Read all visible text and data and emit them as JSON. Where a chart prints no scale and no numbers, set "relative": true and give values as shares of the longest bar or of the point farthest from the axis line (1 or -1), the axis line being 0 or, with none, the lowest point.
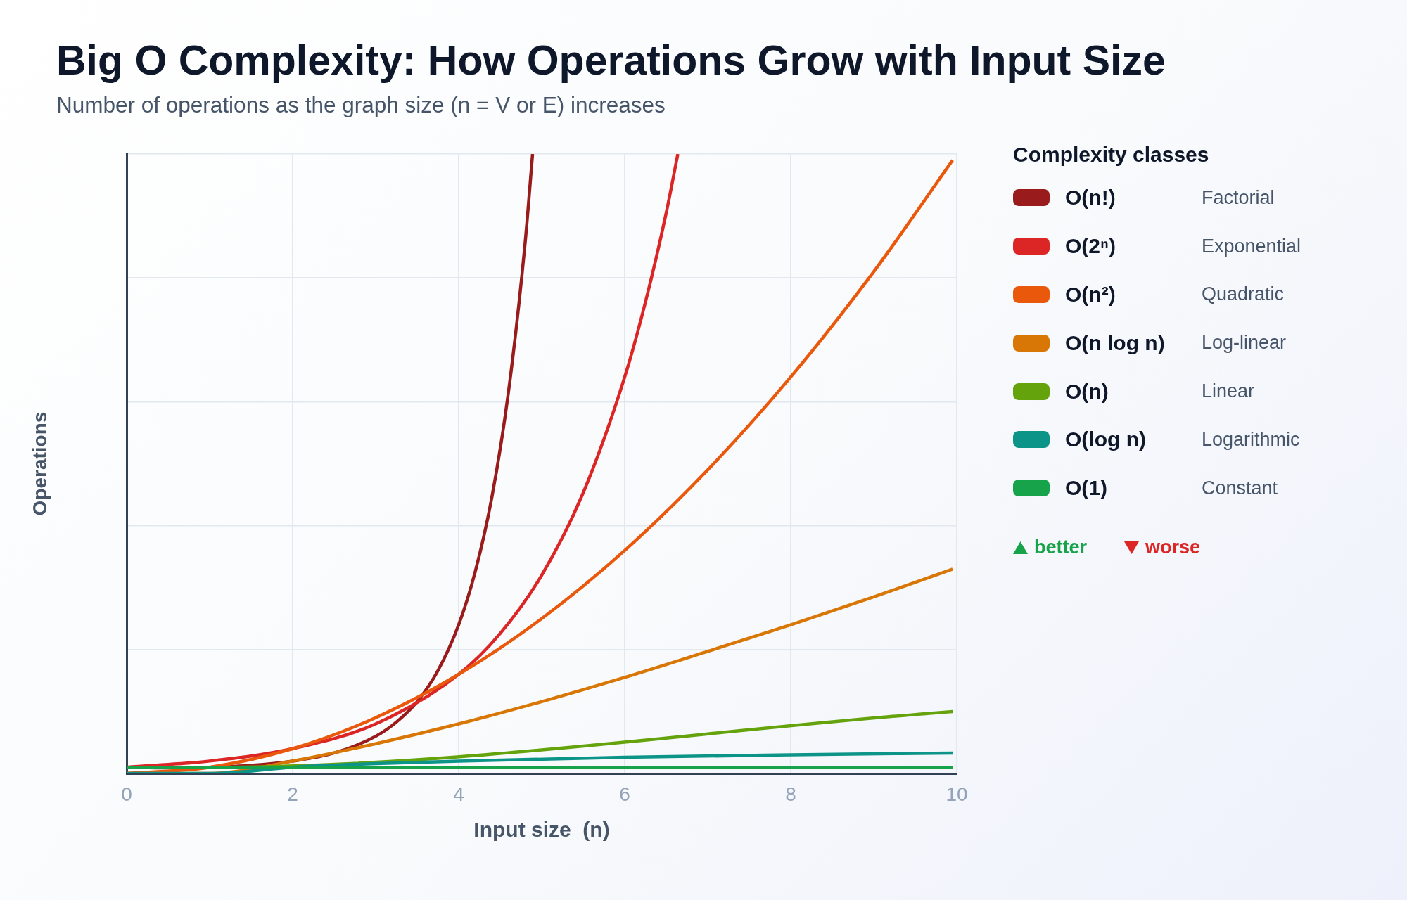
{
  "chart_data": {
    "type": "line",
    "title": "Big O Complexity: How Operations Grow with Input Size",
    "subtitle": "Number of operations as the graph size (n = V or E) increases",
    "xlabel": "Input size  (n)",
    "ylabel": "Operations",
    "legend_title": "Complexity classes",
    "relative": true,
    "xlim": [
      0,
      10
    ],
    "xticks": [
      0,
      2,
      4,
      6,
      8,
      10
    ],
    "grid": true,
    "legend": "right",
    "marker": "none",
    "series": [
      {
        "name": "O(n!)",
        "color": "#991b1b",
        "x": [
          0,
          0.5,
          1,
          1.5,
          2,
          2.5,
          3,
          3.25,
          3.5,
          3.75,
          4,
          4.2,
          4.4,
          4.6,
          4.8,
          4.89
        ],
        "values": [
          0.01,
          0.009,
          0.01,
          0.013,
          0.02,
          0.033,
          0.06,
          0.083,
          0.116,
          0.166,
          0.24,
          0.326,
          0.446,
          0.616,
          0.856,
          1
        ]
      },
      {
        "name": "O(2ⁿ)",
        "color": "#dc2626",
        "x": [
          0,
          1,
          2,
          3,
          4,
          4.5,
          5,
          5.5,
          6,
          6.25,
          6.5,
          6.64
        ],
        "values": [
          0.01,
          0.02,
          0.04,
          0.08,
          0.16,
          0.226,
          0.32,
          0.453,
          0.64,
          0.761,
          0.905,
          1
        ]
      },
      {
        "name": "O(n²)",
        "color": "#ea580c",
        "x": [
          0,
          1,
          2,
          3,
          4,
          5,
          6,
          7,
          8,
          9,
          9.95
        ],
        "values": [
          0,
          0.01,
          0.04,
          0.09,
          0.16,
          0.25,
          0.36,
          0.49,
          0.64,
          0.81,
          0.99
        ]
      },
      {
        "name": "O(n log n)",
        "color": "#d97706",
        "x": [
          0,
          1,
          2,
          3,
          4,
          5,
          6,
          7,
          8,
          9,
          9.95
        ],
        "values": [
          0,
          0,
          0.02,
          0.048,
          0.08,
          0.116,
          0.155,
          0.197,
          0.24,
          0.285,
          0.33
        ]
      },
      {
        "name": "O(n)",
        "color": "#65a30d",
        "x": [
          0,
          1,
          9.95
        ],
        "values": [
          0.01,
          0.01,
          0.1
        ]
      },
      {
        "name": "O(log n)",
        "color": "#0d9488",
        "x": [
          0,
          1,
          2,
          3,
          4,
          6,
          8,
          9.95
        ],
        "values": [
          0,
          0,
          0.01,
          0.016,
          0.02,
          0.026,
          0.03,
          0.033
        ]
      },
      {
        "name": "O(1)",
        "color": "#16a34a",
        "x": [
          0,
          9.95
        ],
        "values": [
          0.01,
          0.01
        ]
      }
    ],
    "annotations": [
      "Factorial",
      "Exponential",
      "Quadratic",
      "Log-linear",
      "Linear",
      "Logarithmic",
      "Constant",
      "better",
      "worse"
    ]
  }
}
